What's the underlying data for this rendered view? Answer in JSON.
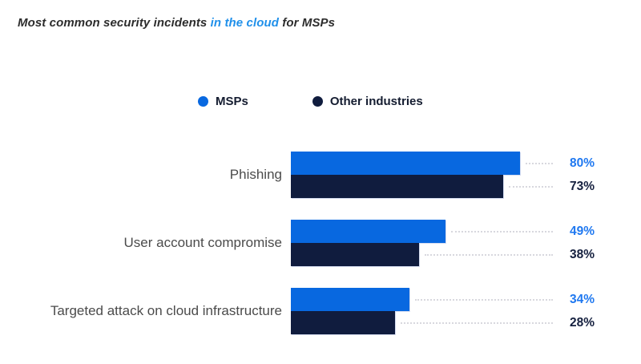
{
  "title": {
    "prefix": "Most common security incidents ",
    "highlight": "in the cloud",
    "suffix": " for MSPs"
  },
  "legend": {
    "items": [
      {
        "label": "MSPs",
        "color": "#0868e0"
      },
      {
        "label": "Other industries",
        "color": "#101c3e"
      }
    ]
  },
  "colors": {
    "msp_bar": "#0868e0",
    "other_bar": "#101c3e",
    "msp_value_text": "#1f78f0",
    "other_value_text": "#15203f",
    "title_highlight": "#2090ea",
    "category_label": "#4b4b4b",
    "leader_dots": "#d8d8de"
  },
  "chart_data": {
    "type": "bar",
    "orientation": "horizontal",
    "title": "Most common security incidents in the cloud for MSPs",
    "categories": [
      "Phishing",
      "User account compromise",
      "Targeted attack on cloud infrastructure"
    ],
    "series": [
      {
        "name": "MSPs",
        "values": [
          80,
          49,
          34
        ],
        "color": "#0868e0",
        "value_color": "#1f78f0"
      },
      {
        "name": "Other industries",
        "values": [
          73,
          38,
          28
        ],
        "color": "#101c3e",
        "value_color": "#15203f"
      }
    ],
    "value_suffix": "%",
    "value_labels": [
      [
        "80%",
        "73%"
      ],
      [
        "49%",
        "38%"
      ],
      [
        "34%",
        "28%"
      ]
    ],
    "xlim": [
      0,
      100
    ],
    "grid": false,
    "legend_position": "top-center"
  }
}
